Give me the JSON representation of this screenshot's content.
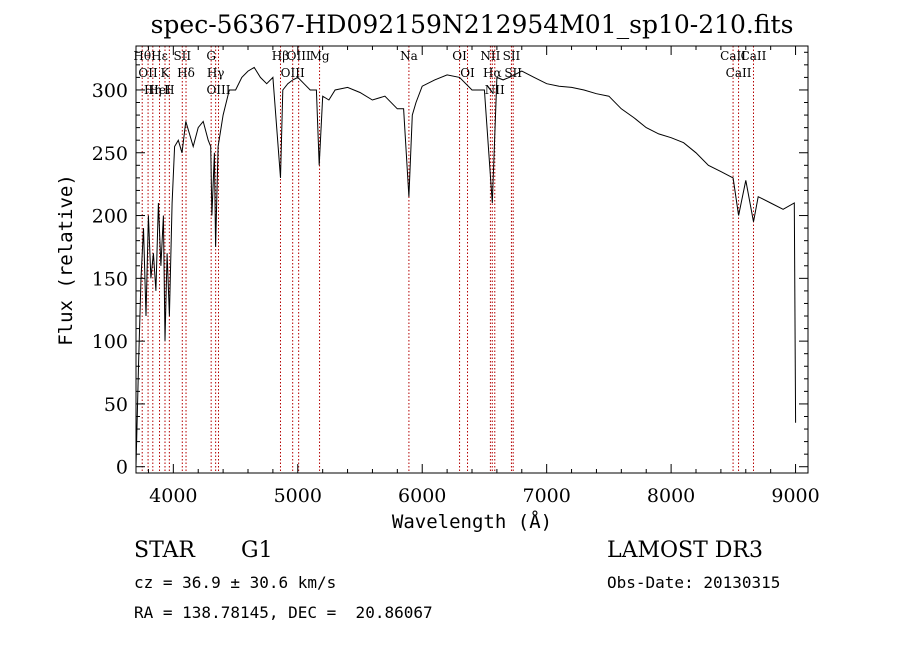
{
  "chart_data": {
    "type": "line",
    "title": "spec-56367-HD092159N212954M01_sp10-210.fits",
    "xlabel": "Wavelength (Å)",
    "ylabel": "Flux (relative)",
    "xlim": [
      3700,
      9100
    ],
    "ylim": [
      -5,
      335
    ],
    "xticks": [
      4000,
      5000,
      6000,
      7000,
      8000,
      9000
    ],
    "yticks": [
      0,
      50,
      100,
      150,
      200,
      250,
      300
    ],
    "series": [
      {
        "x": [
          3700,
          3720,
          3740,
          3760,
          3780,
          3800,
          3820,
          3840,
          3860,
          3880,
          3900,
          3920,
          3933,
          3950,
          3968,
          3990,
          4010,
          4040,
          4070,
          4100,
          4130,
          4160,
          4200,
          4240,
          4280,
          4300,
          4310,
          4330,
          4340,
          4360,
          4400,
          4450,
          4500,
          4550,
          4600,
          4650,
          4700,
          4750,
          4800,
          4861,
          4880,
          4920,
          4960,
          5000,
          5050,
          5100,
          5150,
          5172,
          5200,
          5250,
          5300,
          5400,
          5500,
          5600,
          5700,
          5800,
          5850,
          5893,
          5920,
          5950,
          6000,
          6100,
          6200,
          6300,
          6400,
          6500,
          6563,
          6600,
          6650,
          6700,
          6800,
          6900,
          7000,
          7100,
          7200,
          7300,
          7400,
          7500,
          7600,
          7700,
          7800,
          7900,
          8000,
          8100,
          8200,
          8300,
          8400,
          8498,
          8542,
          8600,
          8662,
          8700,
          8800,
          8900,
          8990,
          9000
        ],
        "y": [
          0,
          80,
          150,
          190,
          120,
          200,
          150,
          170,
          140,
          210,
          160,
          200,
          100,
          170,
          120,
          210,
          255,
          260,
          250,
          275,
          265,
          255,
          270,
          275,
          260,
          255,
          200,
          250,
          175,
          255,
          280,
          300,
          300,
          310,
          315,
          318,
          310,
          305,
          310,
          230,
          300,
          305,
          308,
          310,
          305,
          300,
          300,
          240,
          295,
          292,
          300,
          302,
          298,
          292,
          295,
          285,
          285,
          215,
          280,
          290,
          303,
          308,
          312,
          310,
          300,
          300,
          210,
          310,
          308,
          310,
          315,
          310,
          305,
          303,
          302,
          300,
          297,
          295,
          285,
          278,
          270,
          265,
          262,
          258,
          250,
          240,
          235,
          230,
          200,
          228,
          195,
          215,
          210,
          205,
          210,
          35
        ]
      }
    ],
    "lines": [
      {
        "x": 3750,
        "labels": [
          "Hθ"
        ]
      },
      {
        "x": 3797,
        "labels": [
          "OII"
        ]
      },
      {
        "x": 3835,
        "labels": [
          "Hη"
        ]
      },
      {
        "x": 3889,
        "labels": [
          "Hε",
          "HeI"
        ]
      },
      {
        "x": 3933,
        "labels": [
          "K"
        ]
      },
      {
        "x": 3968,
        "labels": [
          "H"
        ]
      },
      {
        "x": 4072,
        "labels": [
          "SII"
        ]
      },
      {
        "x": 4102,
        "labels": [
          "Hδ"
        ]
      },
      {
        "x": 4304,
        "labels": [
          "G"
        ]
      },
      {
        "x": 4340,
        "labels": [
          "Hγ"
        ]
      },
      {
        "x": 4363,
        "labels": [
          "OIII"
        ]
      },
      {
        "x": 4861,
        "labels": [
          "Hβ"
        ]
      },
      {
        "x": 4959,
        "labels": [
          "OIII"
        ]
      },
      {
        "x": 5007,
        "labels": [
          "OIII"
        ]
      },
      {
        "x": 5175,
        "labels": [
          "Mg"
        ]
      },
      {
        "x": 5893,
        "labels": [
          "Na"
        ]
      },
      {
        "x": 6300,
        "labels": [
          "OI"
        ]
      },
      {
        "x": 6364,
        "labels": [
          "OI"
        ]
      },
      {
        "x": 6548,
        "labels": [
          "NII"
        ]
      },
      {
        "x": 6563,
        "labels": [
          "Hα"
        ]
      },
      {
        "x": 6583,
        "labels": [
          "NII"
        ]
      },
      {
        "x": 6717,
        "labels": [
          "SII"
        ]
      },
      {
        "x": 6731,
        "labels": [
          "SII"
        ]
      },
      {
        "x": 8498,
        "labels": [
          "CaII"
        ]
      },
      {
        "x": 8542,
        "labels": [
          "CaII"
        ]
      },
      {
        "x": 8662,
        "labels": [
          "CaII"
        ]
      }
    ],
    "grid": false,
    "legend": "none",
    "line_color": "#000000",
    "marker_color": "#b40000"
  },
  "info": {
    "class_label": "STAR",
    "subclass": "G1",
    "cz": "cz = 36.9 ± 30.6 km/s",
    "radec": "RA = 138.78145, DEC =  20.86067",
    "survey": "LAMOST DR3",
    "obs_date": "Obs-Date: 20130315"
  }
}
